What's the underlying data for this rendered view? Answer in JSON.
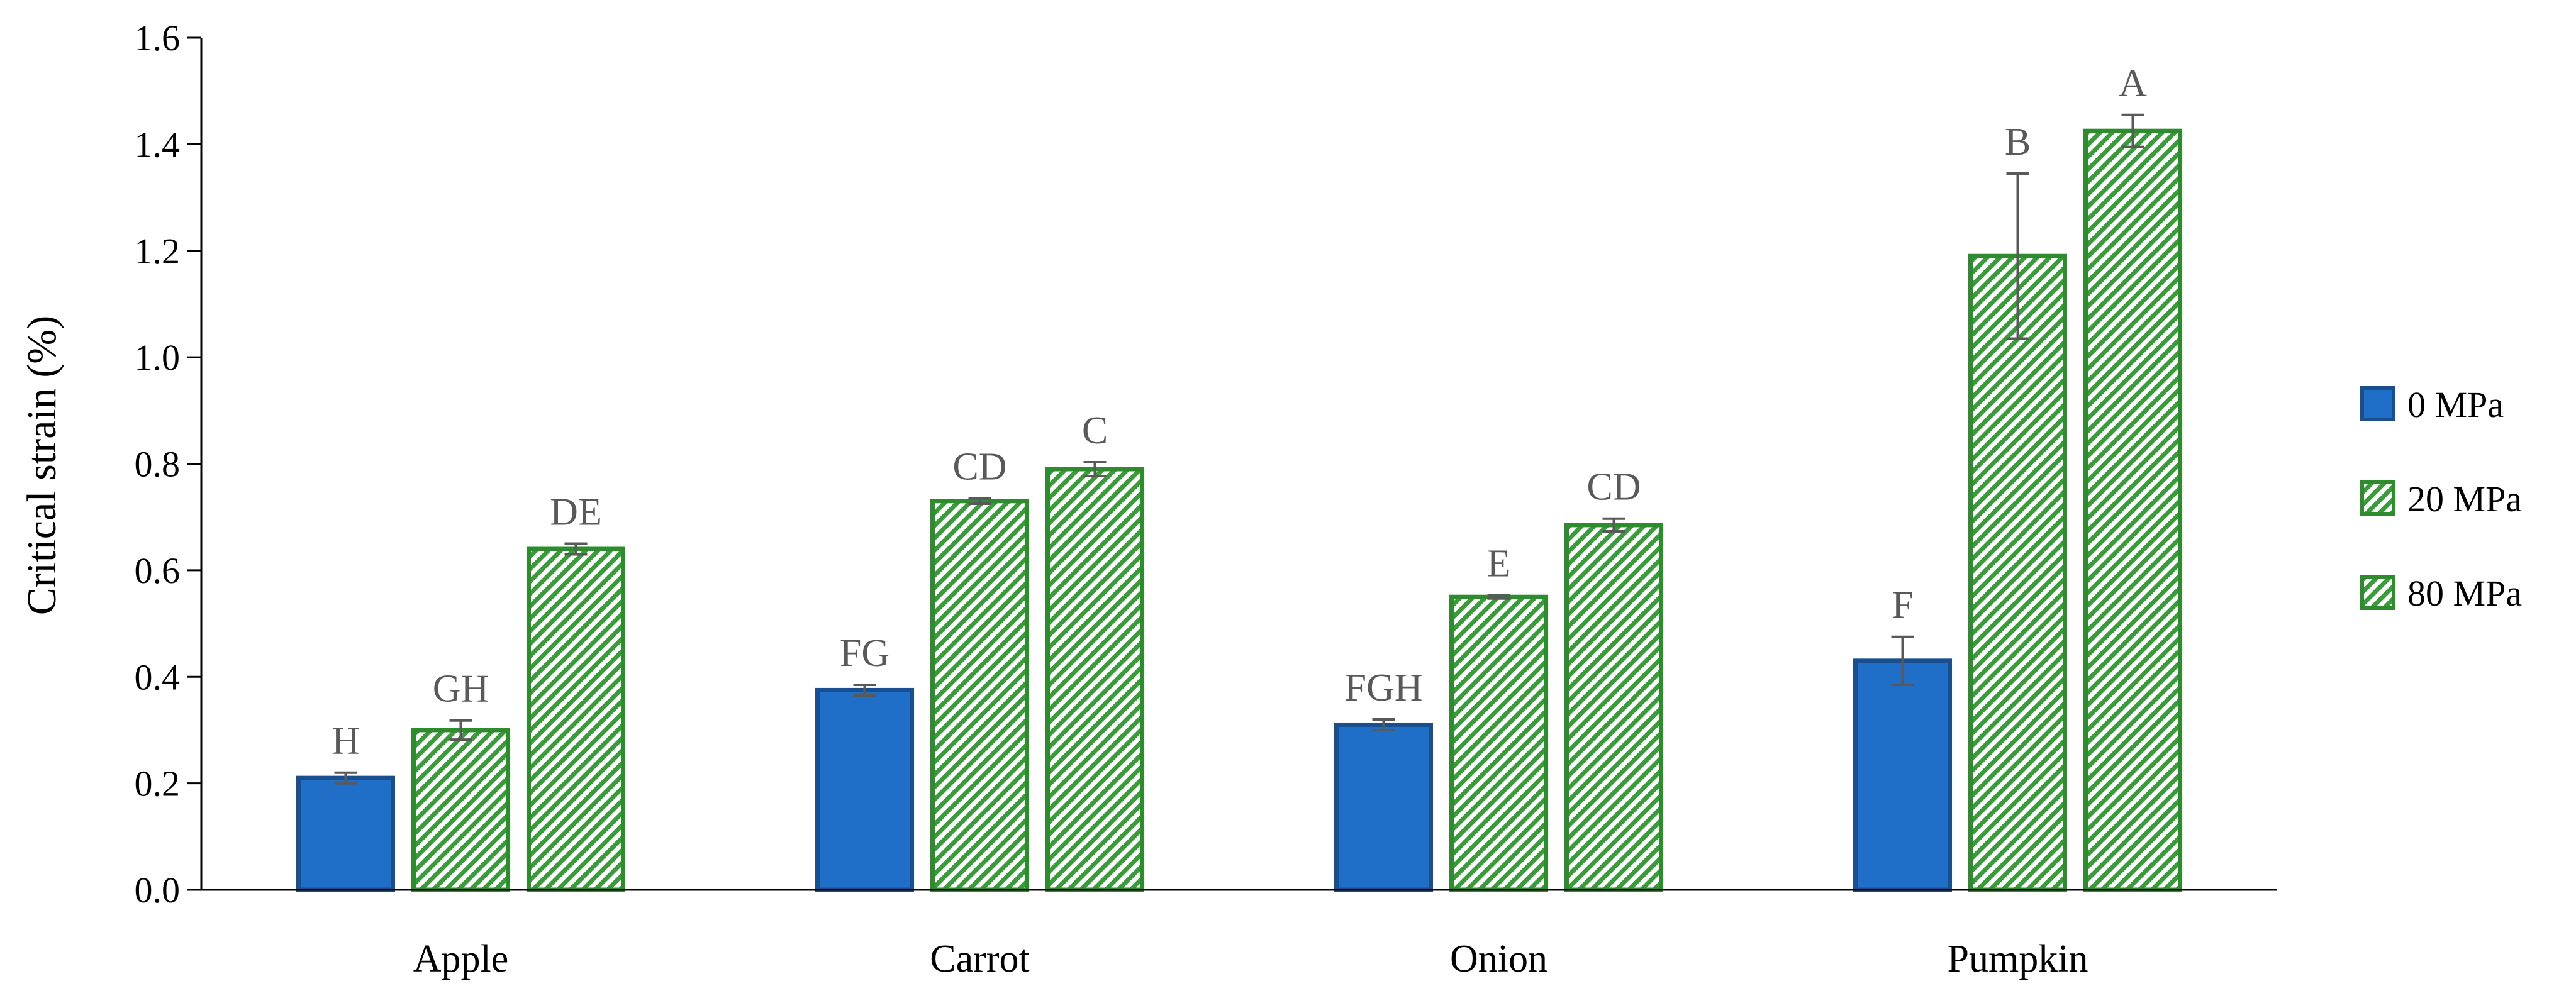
{
  "chart_data": {
    "type": "bar",
    "ylabel": "Critical strain (%)",
    "ylim": [
      0,
      1.6
    ],
    "yticks": [
      "0.0",
      "0.2",
      "0.4",
      "0.6",
      "0.8",
      "1.0",
      "1.2",
      "1.4",
      "1.6"
    ],
    "grid": false,
    "legend_position": "right",
    "categories": [
      "Apple",
      "Carrot",
      "Onion",
      "Pumpkin"
    ],
    "series": [
      {
        "name": "0 MPa",
        "fill": "#1f6fc8",
        "stroke": "#1a4f8f",
        "pattern": "solid",
        "values": [
          0.21,
          0.375,
          0.31,
          0.43
        ],
        "errors": [
          0.01,
          0.01,
          0.01,
          0.045
        ],
        "labels": [
          "H",
          "FG",
          "FGH",
          "F"
        ]
      },
      {
        "name": "20 MPa",
        "fill": "#3a9b3a",
        "stroke": "#2e8b2e",
        "pattern": "diagonal",
        "values": [
          0.3,
          0.73,
          0.55,
          1.19
        ],
        "errors": [
          0.018,
          0.005,
          0.003,
          0.155
        ],
        "labels": [
          "GH",
          "CD",
          "E",
          "B"
        ]
      },
      {
        "name": "80 MPa",
        "fill": "#3a9b3a",
        "stroke": "#2e8b2e",
        "pattern": "diagonal",
        "values": [
          0.64,
          0.79,
          0.685,
          1.425
        ],
        "errors": [
          0.01,
          0.013,
          0.012,
          0.03
        ],
        "labels": [
          "DE",
          "C",
          "CD",
          "A"
        ]
      }
    ]
  }
}
